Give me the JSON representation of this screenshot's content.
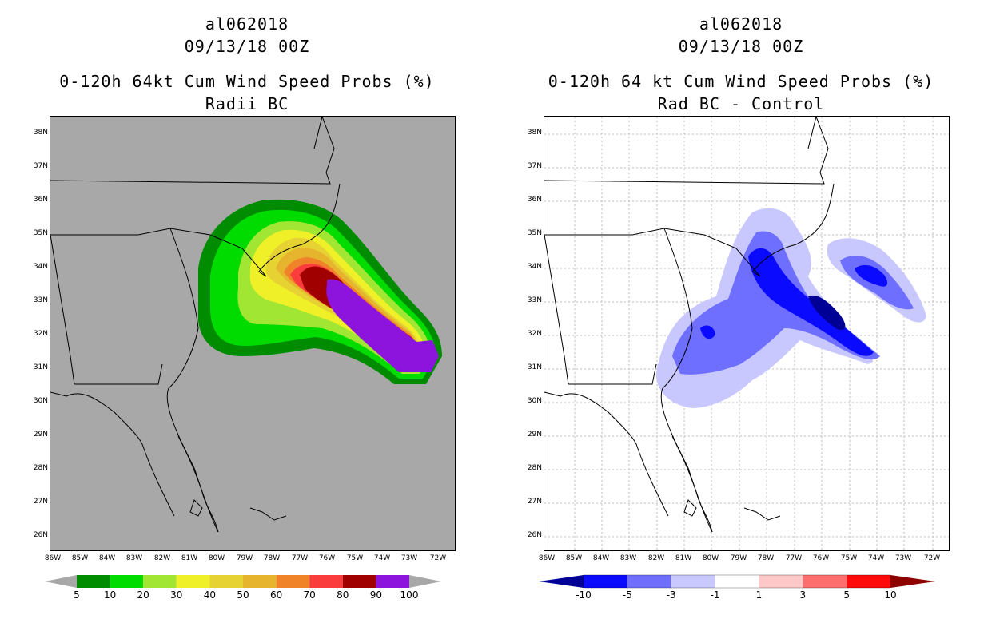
{
  "left_panel": {
    "title_line1": "al062018",
    "title_line2": "09/13/18 00Z",
    "title_line3": "0-120h 64kt Cum Wind Speed Probs (%)",
    "title_line4": "Radii BC",
    "background_color": "#a8a8a8",
    "colorbar": {
      "labels": [
        "5",
        "10",
        "20",
        "30",
        "40",
        "50",
        "60",
        "70",
        "80",
        "90",
        "100"
      ],
      "colors": [
        "#008c00",
        "#00dc00",
        "#a0e632",
        "#f0f028",
        "#e6d232",
        "#e6b42d",
        "#f08228",
        "#fa3c3c",
        "#a00000",
        "#8c14dc"
      ],
      "end_color": "#a8a8a8"
    }
  },
  "right_panel": {
    "title_line1": "al062018",
    "title_line2": "09/13/18 00Z",
    "title_line3": "0-120h 64 kt Cum Wind Speed Probs (%)",
    "title_line4": "Rad BC - Control",
    "background_color": "#ffffff",
    "colorbar": {
      "labels": [
        "-10",
        "-5",
        "-3",
        "-1",
        "1",
        "3",
        "5",
        "10"
      ],
      "colors": [
        "#000096",
        "#0a0aff",
        "#6e6eff",
        "#c8c8ff",
        "#ffffff",
        "#ffc8c8",
        "#ff6e6e",
        "#ff0a0a",
        "#8c0000"
      ]
    }
  },
  "axes": {
    "lat_labels": [
      "38N",
      "37N",
      "36N",
      "35N",
      "34N",
      "33N",
      "32N",
      "31N",
      "30N",
      "29N",
      "28N",
      "27N",
      "26N"
    ],
    "lon_labels": [
      "86W",
      "85W",
      "84W",
      "83W",
      "82W",
      "81W",
      "80W",
      "79W",
      "78W",
      "77W",
      "76W",
      "75W",
      "74W",
      "73W",
      "72W"
    ]
  }
}
